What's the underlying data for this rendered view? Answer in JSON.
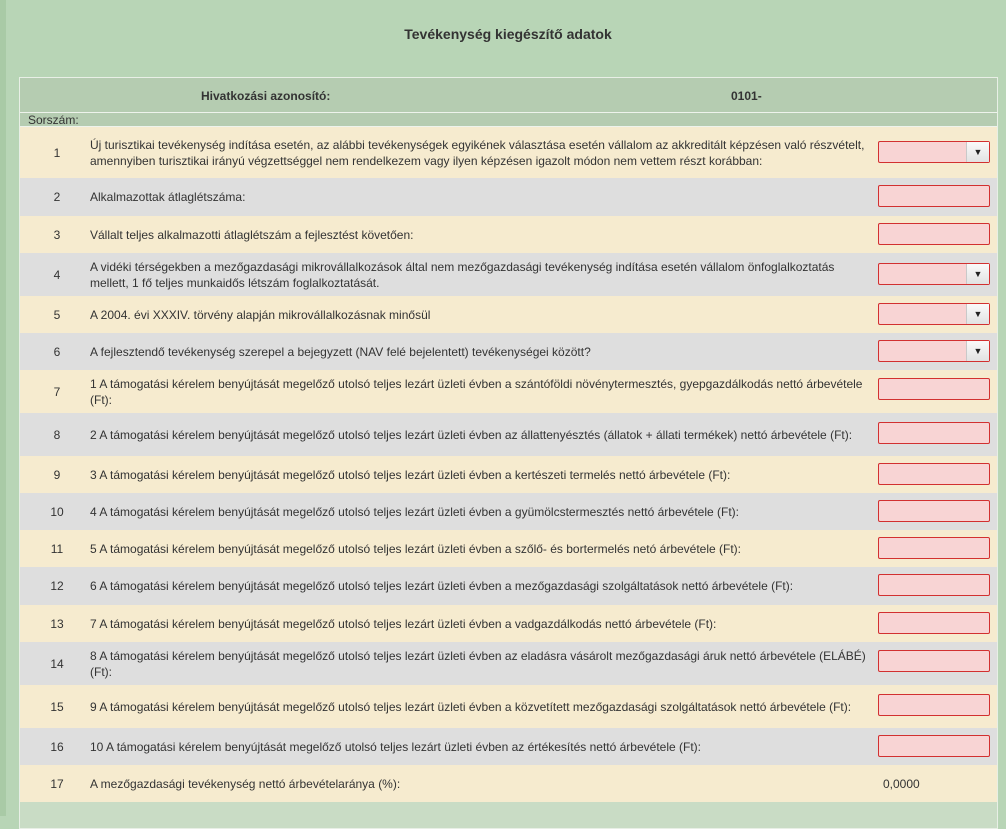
{
  "page": {
    "title": "Tevékenység kiegészítő adatok"
  },
  "header": {
    "ref_label": "Hivatkozási azonosító:",
    "ref_value": "0101-",
    "sorszam_label": "Sorszám:"
  },
  "rows": [
    {
      "num": "1",
      "text": "Új turisztikai tevékenység indítása esetén, az alábbi tevékenységek egyikének választása esetén vállalom az akkreditált képzésen való részvételt, amennyiben turisztikai irányú végzettséggel nem rendelkezem vagy ilyen képzésen igazolt módon nem vettem részt korábban:",
      "field": "select",
      "value": ""
    },
    {
      "num": "2",
      "text": "Alkalmazottak átlaglétszáma:",
      "field": "input",
      "value": ""
    },
    {
      "num": "3",
      "text": "Vállalt teljes alkalmazotti átlaglétszám a fejlesztést követően:",
      "field": "input",
      "value": ""
    },
    {
      "num": "4",
      "text": "A vidéki térségekben a mezőgazdasági mikrovállalkozások által nem mezőgazdasági tevékenység indítása esetén vállalom önfoglalkoztatás mellett, 1 fő teljes munkaidős létszám foglalkoztatását.",
      "field": "select",
      "value": ""
    },
    {
      "num": "5",
      "text": "A 2004. évi XXXIV. törvény alapján mikrovállalkozásnak minősül",
      "field": "select",
      "value": ""
    },
    {
      "num": "6",
      "text": "A fejlesztendő tevékenység szerepel a bejegyzett (NAV felé bejelentett) tevékenységei között?",
      "field": "select",
      "value": ""
    },
    {
      "num": "7",
      "text": "1 A támogatási kérelem benyújtását megelőző utolsó teljes lezárt üzleti évben a szántóföldi növénytermesztés, gyepgazdálkodás nettó árbevétele (Ft):",
      "field": "input",
      "value": ""
    },
    {
      "num": "8",
      "text": "2 A támogatási kérelem benyújtását megelőző utolsó teljes lezárt üzleti évben az állattenyésztés (állatok + állati termékek) nettó árbevétele (Ft):",
      "field": "input",
      "value": ""
    },
    {
      "num": "9",
      "text": "3 A támogatási kérelem benyújtását megelőző utolsó teljes lezárt üzleti évben a kertészeti termelés nettó árbevétele (Ft):",
      "field": "input",
      "value": ""
    },
    {
      "num": "10",
      "text": "4 A támogatási kérelem benyújtását megelőző utolsó teljes lezárt üzleti évben a gyümölcstermesztés nettó árbevétele (Ft):",
      "field": "input",
      "value": ""
    },
    {
      "num": "11",
      "text": "5 A támogatási kérelem benyújtását megelőző utolsó teljes lezárt üzleti évben a szőlő- és bortermelés netó árbevétele (Ft):",
      "field": "input",
      "value": ""
    },
    {
      "num": "12",
      "text": "6 A támogatási kérelem benyújtását megelőző utolsó teljes lezárt üzleti évben a mezőgazdasági szolgáltatások nettó árbevétele (Ft):",
      "field": "input",
      "value": ""
    },
    {
      "num": "13",
      "text": "7 A támogatási kérelem benyújtását megelőző utolsó teljes lezárt üzleti évben a vadgazdálkodás nettó árbevétele (Ft):",
      "field": "input",
      "value": ""
    },
    {
      "num": "14",
      "text": "8 A támogatási kérelem benyújtását megelőző utolsó teljes lezárt üzleti évben az eladásra vásárolt mezőgazdasági áruk nettó árbevétele (ELÁBÉ) (Ft):",
      "field": "input",
      "value": ""
    },
    {
      "num": "15",
      "text": "9 A támogatási kérelem benyújtását megelőző utolsó teljes lezárt üzleti évben a közvetített mezőgazdasági szolgáltatások nettó árbevétele (Ft):",
      "field": "input",
      "value": ""
    },
    {
      "num": "16",
      "text": "10 A támogatási kérelem benyújtását megelőző utolsó teljes lezárt üzleti évben az értékesítés nettó árbevétele (Ft):",
      "field": "input",
      "value": ""
    },
    {
      "num": "17",
      "text": "A mezőgazdasági tevékenység nettó árbevételaránya (%):",
      "field": "static",
      "value": "0,0000"
    }
  ]
}
